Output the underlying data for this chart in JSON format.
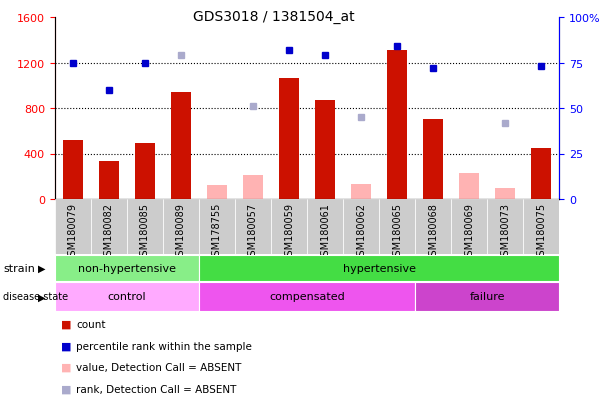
{
  "title": "GDS3018 / 1381504_at",
  "samples": [
    "GSM180079",
    "GSM180082",
    "GSM180085",
    "GSM180089",
    "GSM178755",
    "GSM180057",
    "GSM180059",
    "GSM180061",
    "GSM180062",
    "GSM180065",
    "GSM180068",
    "GSM180069",
    "GSM180073",
    "GSM180075"
  ],
  "count_values": [
    520,
    330,
    490,
    940,
    null,
    null,
    1060,
    870,
    null,
    1310,
    700,
    null,
    null,
    450
  ],
  "count_absent": [
    null,
    null,
    null,
    null,
    120,
    210,
    null,
    null,
    130,
    null,
    null,
    230,
    100,
    null
  ],
  "blue_pct_present": [
    75,
    60,
    75,
    null,
    null,
    null,
    82,
    79,
    null,
    84,
    72,
    null,
    null,
    73
  ],
  "blue_pct_absent": [
    null,
    null,
    null,
    79,
    null,
    51,
    null,
    null,
    45,
    null,
    null,
    null,
    42,
    null
  ],
  "ylim_left": [
    0,
    1600
  ],
  "ylim_right": [
    0,
    100
  ],
  "yticks_left": [
    0,
    400,
    800,
    1200,
    1600
  ],
  "yticks_right": [
    0,
    25,
    50,
    75,
    100
  ],
  "strain_groups": [
    {
      "label": "non-hypertensive",
      "start": 0,
      "end": 4,
      "color": "#88EE88"
    },
    {
      "label": "hypertensive",
      "start": 4,
      "end": 14,
      "color": "#44DD44"
    }
  ],
  "disease_groups": [
    {
      "label": "control",
      "start": 0,
      "end": 4,
      "color": "#FFAAFF"
    },
    {
      "label": "compensated",
      "start": 4,
      "end": 10,
      "color": "#EE55EE"
    },
    {
      "label": "failure",
      "start": 10,
      "end": 14,
      "color": "#CC44CC"
    }
  ],
  "bar_color_present": "#CC1100",
  "bar_color_absent": "#FFB3B3",
  "dot_color_present": "#0000CC",
  "dot_color_absent": "#AAAACC",
  "tick_bg": "#CCCCCC",
  "grid_dotted_color": "#000000"
}
